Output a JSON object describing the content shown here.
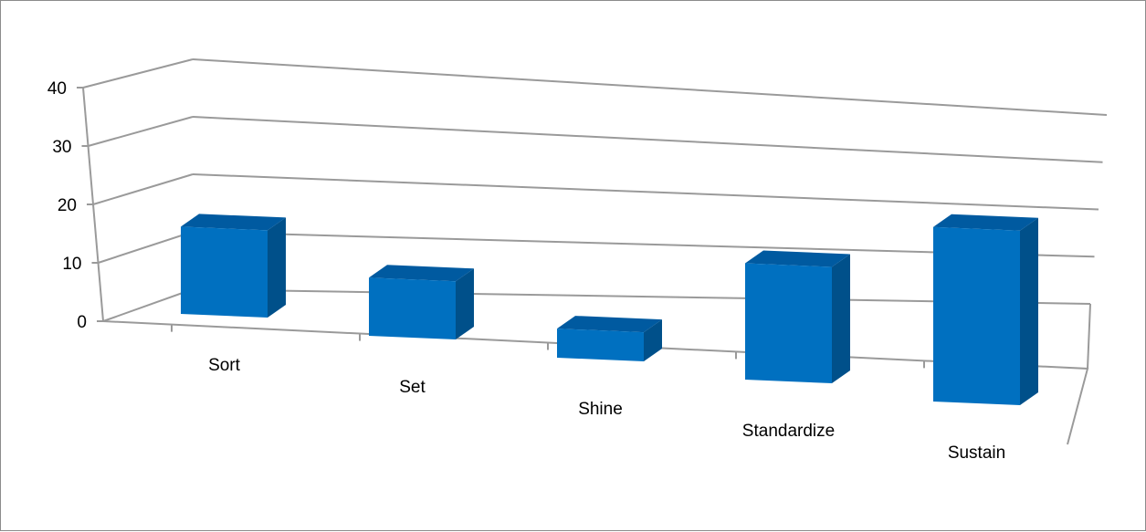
{
  "chart_data": {
    "type": "bar",
    "title": "",
    "xlabel": "",
    "ylabel": "",
    "categories": [
      "Sort",
      "Set",
      "Shine",
      "Standardize",
      "Sustain"
    ],
    "values": [
      15,
      10,
      5,
      20,
      30
    ],
    "ylim": [
      0,
      40
    ],
    "yticks": [
      "0",
      "10",
      "20",
      "30",
      "40"
    ],
    "grid": true,
    "legend": false,
    "three_d": true,
    "colors": {
      "bar_front": "#0070C0",
      "bar_side": "#00508A",
      "bar_top": "#005AA0",
      "gridline": "#9a9a9a"
    }
  }
}
